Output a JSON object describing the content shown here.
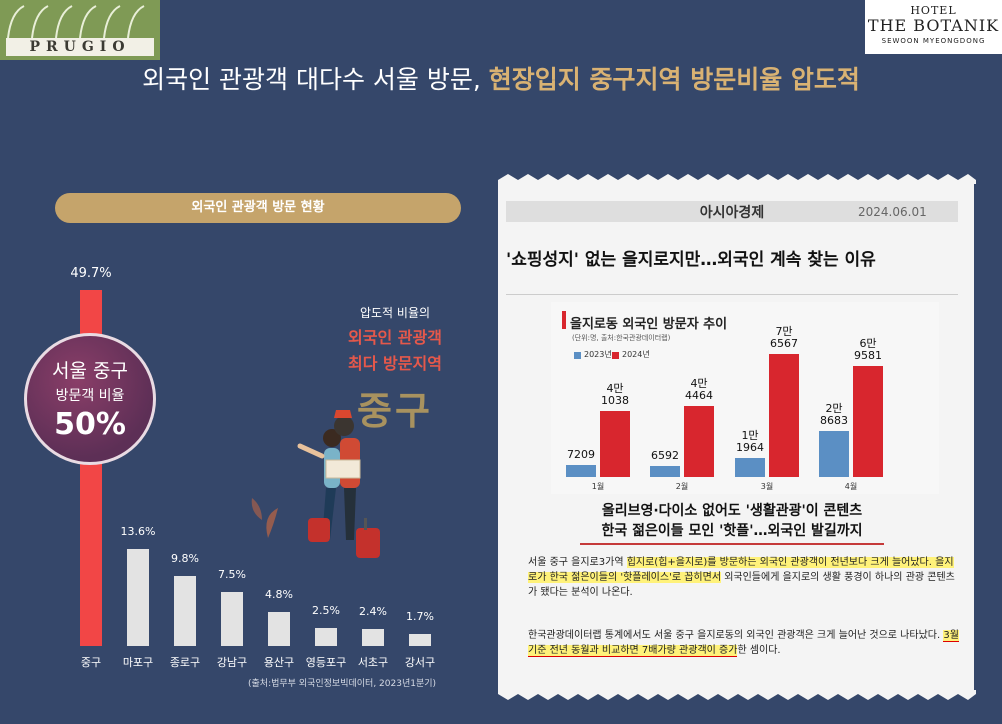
{
  "logos": {
    "prugio": "PRUGIO",
    "botanik_hotel": "HOTEL",
    "botanik_name": "THE BOTANIK",
    "botanik_sub": "SEWOON MYEONGDONG"
  },
  "title": {
    "part1": "외국인 관광객 대다수 서울 방문,",
    "part2": "현장입지 중구지역 방문비율 압도적"
  },
  "colors": {
    "background": "#35476a",
    "highlight_bar": "#f24646",
    "normal_bar": "#e3e3e3",
    "accent_gold": "#c5a46b",
    "series_2023": "#5b8fc4",
    "series_2024": "#d8262e"
  },
  "chart_data": [
    {
      "type": "bar",
      "title": "외국인 관광객 방문 현황",
      "categories": [
        "중구",
        "마포구",
        "종로구",
        "강남구",
        "용산구",
        "영등포구",
        "서초구",
        "강서구"
      ],
      "values": [
        49.7,
        13.6,
        9.8,
        7.5,
        4.8,
        2.5,
        2.4,
        1.7
      ],
      "value_labels": [
        "49.7%",
        "13.6%",
        "9.8%",
        "7.5%",
        "4.8%",
        "2.5%",
        "2.4%",
        "1.7%"
      ],
      "highlight_index": 0,
      "source": "(출처:법무부 외국인정보빅데이터, 2023년1분기)"
    },
    {
      "type": "bar",
      "title": "을지로동 외국인 방문자 추이",
      "subtitle": "(단위:명, 출처:한국관광데이터랩)",
      "categories": [
        "1월",
        "2월",
        "3월",
        "4월"
      ],
      "series": [
        {
          "name": "2023년",
          "values": [
            7209,
            6592,
            11964,
            28683
          ],
          "labels": [
            "7209",
            "6592",
            "1만 1964",
            "2만 8683"
          ]
        },
        {
          "name": "2024년",
          "values": [
            41038,
            44464,
            76567,
            69581
          ],
          "labels": [
            "4만 1038",
            "4만 4464",
            "7만 6567",
            "6만 9581"
          ]
        }
      ],
      "ylim": [
        0,
        80000
      ]
    }
  ],
  "badge": {
    "line1": "서울 중구",
    "line2": "방문객 비율",
    "line3": "50%"
  },
  "callout": {
    "line1": "압도적 비율의",
    "line2a": "외국인 관광객",
    "line2b": "최다 방문지역",
    "line3": "중구"
  },
  "article": {
    "paper": "아시아경제",
    "date": "2024.06.01",
    "headline": "'쇼핑성지' 없는 을지로지만…외국인 계속 찾는 이유",
    "subhead1": "올리브영·다이소 없어도 '생활관광'이 콘텐츠",
    "subhead2": "한국 젊은이들 모인 '핫플'…외국인 발길까지",
    "p1_a": "서울 중구 을지로3가역 ",
    "p1_hl": "힙지로(힙+을지로)를 방문하는 외국인 관광객이 전년보다 크게 늘어났다. 을지로가 한국 젊은이들의 '핫플레이스'로 꼽히면서",
    "p1_b": " 외국인들에게 을지로의 생활 풍경이 하나의 관광 콘텐츠가 됐다는 분석이 나온다.",
    "p2_a": "한국관광데이터랩 통계에서도 서울 중구 을지로동의 외국인 관광객은 크게 늘어난 것으로 나타났다. ",
    "p2_hl": "3월 기준 전년 동월과 비교하면 7배가량 관광객이 증가",
    "p2_b": "한 셈이다."
  }
}
